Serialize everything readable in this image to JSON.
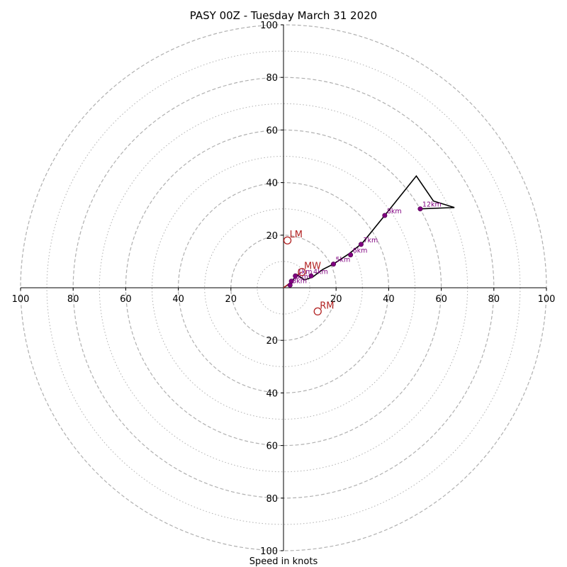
{
  "title": "PASY 00Z - Tuesday March 31 2020",
  "xlabel": "Speed in knots",
  "colors": {
    "hodograph_line": "#000000",
    "height_marker": "#800080",
    "storm_motion": "#b22222",
    "grid": "#b0b0b0"
  },
  "chart_data": {
    "type": "scatter",
    "title": "PASY 00Z - Tuesday March 31 2020",
    "xlabel": "Speed in knots",
    "xlim": [
      -100,
      100
    ],
    "ylim": [
      -100,
      100
    ],
    "grid": true,
    "rings_dashed": [
      20,
      40,
      60,
      80,
      100
    ],
    "rings_dotted": [
      10,
      30,
      50,
      70,
      90
    ],
    "tick_labels": [
      "20",
      "40",
      "60",
      "80",
      "100"
    ],
    "hodograph": [
      {
        "u": 0,
        "v": 0
      },
      {
        "u": 3,
        "v": 2
      },
      {
        "u": 5,
        "v": 5
      },
      {
        "u": 8,
        "v": 3
      },
      {
        "u": 11,
        "v": 4
      },
      {
        "u": 15,
        "v": 7
      },
      {
        "u": 19,
        "v": 9
      },
      {
        "u": 25,
        "v": 13
      },
      {
        "u": 30,
        "v": 17
      },
      {
        "u": 38.5,
        "v": 27.5
      },
      {
        "u": 50.5,
        "v": 42.5
      },
      {
        "u": 57,
        "v": 33
      },
      {
        "u": 65,
        "v": 30.5
      },
      {
        "u": 52,
        "v": 30
      }
    ],
    "height_points": [
      {
        "label": "1km",
        "u": 4.5,
        "v": 4.5
      },
      {
        "label": "2km",
        "u": 3,
        "v": 2.5
      },
      {
        "label": "3km",
        "u": 2.5,
        "v": 1
      },
      {
        "label": "4km",
        "u": 10.5,
        "v": 4.5
      },
      {
        "label": "5km",
        "u": 19,
        "v": 9
      },
      {
        "label": "6km",
        "u": 25.5,
        "v": 12.5
      },
      {
        "label": "7km",
        "u": 29.5,
        "v": 16.5
      },
      {
        "label": "8km",
        "u": 38.5,
        "v": 27.5
      },
      {
        "label": "12km",
        "u": 52,
        "v": 30
      }
    ],
    "storm_motion": [
      {
        "label": "LM",
        "u": 1.5,
        "v": 18
      },
      {
        "label": "MW",
        "u": 7,
        "v": 6
      },
      {
        "label": "RM",
        "u": 13,
        "v": -9
      }
    ]
  }
}
